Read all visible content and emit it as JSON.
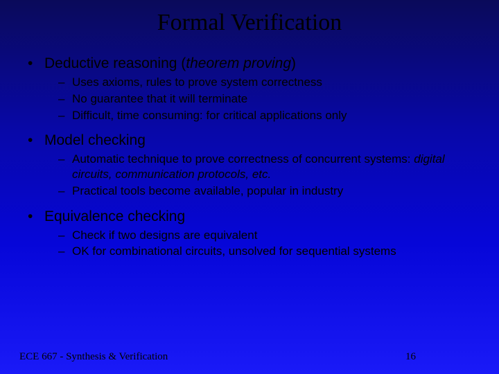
{
  "title": "Formal Verification",
  "sections": [
    {
      "heading_prefix": "Deductive reasoning (",
      "heading_italic": "theorem proving",
      "heading_suffix": ")",
      "items": [
        "Uses axioms, rules to prove system correctness",
        "No guarantee that it will terminate",
        "Difficult, time consuming: for critical applications only"
      ]
    },
    {
      "heading_prefix": "Model checking",
      "heading_italic": "",
      "heading_suffix": "",
      "items_rich": [
        {
          "pre": "Automatic technique to prove correctness of concurrent systems: ",
          "it": "digital circuits, communication protocols, etc.",
          "post": ""
        },
        {
          "pre": "Practical tools become available, popular in industry",
          "it": "",
          "post": ""
        }
      ]
    },
    {
      "heading_prefix": "Equivalence checking",
      "heading_italic": "",
      "heading_suffix": "",
      "items": [
        "Check if two designs are equivalent",
        "OK for combinational circuits, unsolved for sequential systems"
      ]
    }
  ],
  "footer_left": "ECE 667 - Synthesis & Verification",
  "footer_page": "16",
  "colors": {
    "bg_top": "#0a0a5a",
    "bg_bottom": "#1a1af8",
    "text": "#000000"
  }
}
